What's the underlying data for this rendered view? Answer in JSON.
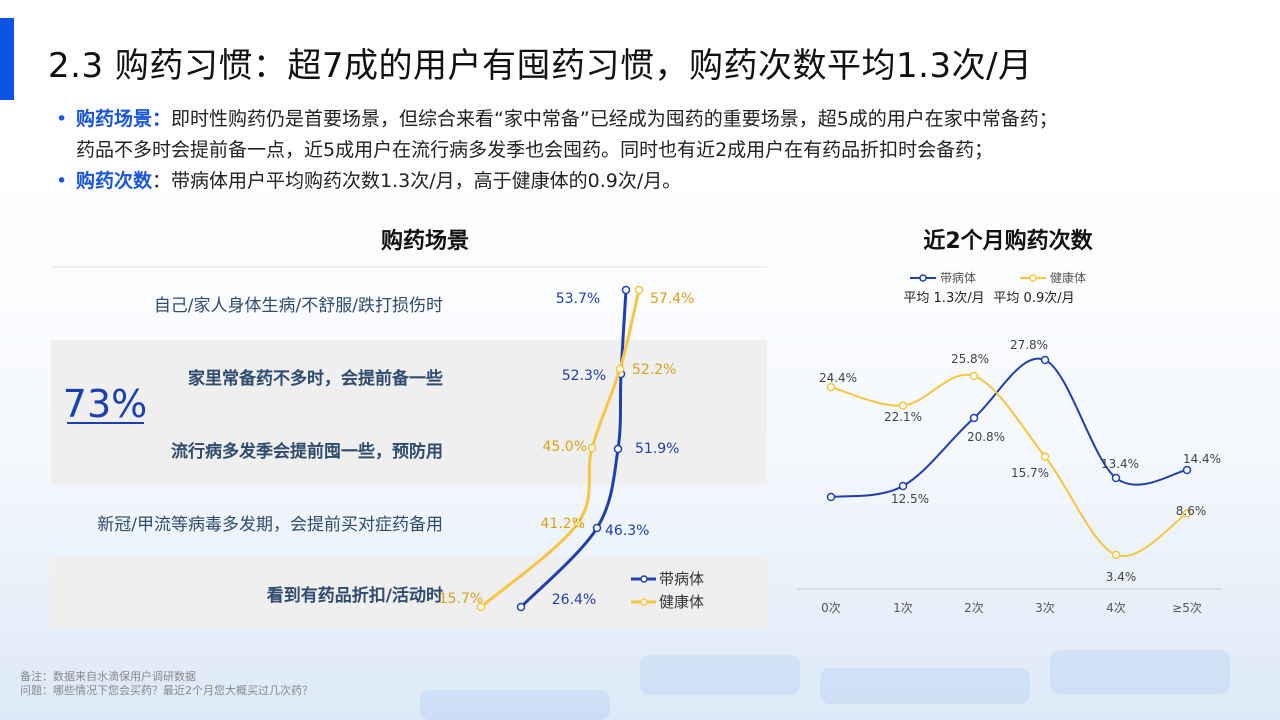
{
  "title": "2.3 购药习惯：超7成的用户有囤药习惯，购药次数平均1.3次/月",
  "bullets": [
    {
      "head": "购药场景：",
      "text": "即时性购药仍是首要场景，但综合来看“家中常备”已经成为囤药的重要场景，超5成的用户在家中常备药；",
      "cont": "药品不多时会提前备一点，近5成用户在流行病多发季也会囤药。同时也有近2成用户在有药品折扣时会备药；"
    },
    {
      "head": "购药次数",
      "text": "：带病体用户平均购药次数1.3次/月，高于健康体的0.9次/月。",
      "cont": ""
    }
  ],
  "footnotes": {
    "note": "备注：数据来自水滴保用户调研数据",
    "question": "问题：哪些情况下您会买药？最近2个月您大概买过几次药？"
  },
  "colors": {
    "sick": "#1f3fae",
    "healthy": "#f6c643",
    "healthy_label": "#d9a21c",
    "accent": "#0a55e6",
    "row_shade": "#efefef"
  },
  "chart_data": [
    {
      "type": "line",
      "orientation": "vertical",
      "title": "购药场景",
      "categories": [
        "自己/家人身体生病/不舒服/跌打损伤时",
        "家里常备药不多时，会提前备一些",
        "流行病多发季会提前囤一些，预防用",
        "新冠/甲流等病毒多发期，会提前买对症药备用",
        "看到有药品折扣/活动时"
      ],
      "series": [
        {
          "name": "带病体",
          "values": [
            53.7,
            52.3,
            51.9,
            46.3,
            26.4
          ],
          "labels": [
            "53.7%",
            "52.3%",
            "51.9%",
            "46.3%",
            "26.4%"
          ]
        },
        {
          "name": "健康体",
          "values": [
            57.4,
            52.2,
            45.0,
            41.2,
            15.7
          ],
          "labels": [
            "57.4%",
            "52.2%",
            "45.0%",
            "41.2%",
            "15.7%"
          ]
        }
      ],
      "highlight": {
        "value": "73%",
        "rows": [
          1,
          2
        ]
      },
      "legend_position": "bottom-right"
    },
    {
      "type": "line",
      "title": "近2个月购药次数",
      "categories": [
        "0次",
        "1次",
        "2次",
        "3次",
        "4次",
        "≥5次"
      ],
      "series": [
        {
          "name": "带病体",
          "average": "平均 1.3次/月",
          "values": [
            null,
            12.5,
            20.8,
            27.8,
            13.4,
            14.4
          ],
          "labels": [
            "",
            "12.5%",
            "20.8%",
            "27.8%",
            "13.4%",
            "14.4%"
          ]
        },
        {
          "name": "健康体",
          "average": "平均 0.9次/月",
          "values": [
            24.4,
            22.1,
            25.8,
            15.7,
            3.4,
            8.6
          ],
          "labels": [
            "24.4%",
            "22.1%",
            "25.8%",
            "15.7%",
            "3.4%",
            "8.6%"
          ]
        }
      ],
      "legend_position": "top"
    }
  ]
}
